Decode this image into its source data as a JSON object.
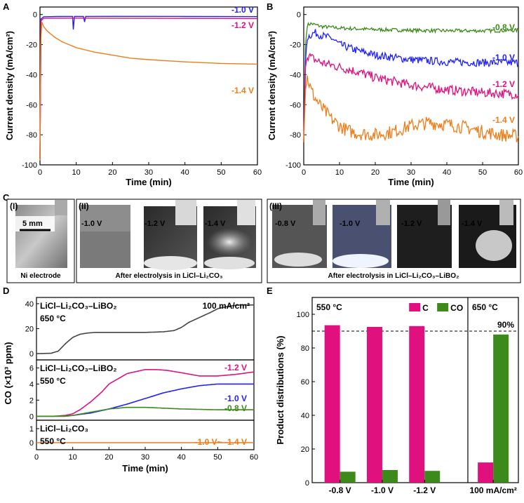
{
  "panel_labels": {
    "a": "A",
    "b": "B",
    "c": "C",
    "d": "D",
    "e": "E"
  },
  "chart_data": [
    {
      "id": "A",
      "type": "line",
      "xlabel": "Time (min)",
      "ylabel": "Current density (mA/cm²)",
      "xlim": [
        0,
        60
      ],
      "ylim": [
        -100,
        5
      ],
      "xticks": [
        0,
        10,
        20,
        30,
        40,
        50,
        60
      ],
      "yticks": [
        0,
        -20,
        -40,
        -60,
        -80,
        -100
      ],
      "series": [
        {
          "name": "-1.0 V",
          "color": "#1f1fff",
          "x": [
            0,
            0.3,
            1,
            5,
            9,
            9.2,
            9.5,
            12,
            12.3,
            12.6,
            20,
            40,
            60
          ],
          "y": [
            -96,
            -3,
            -1.5,
            -1.3,
            -1.3,
            -10,
            -1.3,
            -1.3,
            -5,
            -1.3,
            -1.2,
            -1.3,
            -1.4
          ]
        },
        {
          "name": "-1.2 V",
          "color": "#e0117f",
          "x": [
            0,
            0.3,
            1,
            10,
            30,
            50,
            60
          ],
          "y": [
            -96,
            -4,
            -2.5,
            -2.4,
            -2.5,
            -2.6,
            -2.7
          ]
        },
        {
          "name": "-1.4 V",
          "color": "#ee7d1a",
          "x": [
            0,
            0.2,
            0.5,
            1,
            2,
            4,
            6,
            8,
            10,
            15,
            20,
            25,
            30,
            40,
            50,
            60
          ],
          "y": [
            -97,
            -20,
            -5,
            -8,
            -11,
            -15,
            -18,
            -20,
            -22,
            -25,
            -27,
            -29,
            -30,
            -31.5,
            -32.5,
            -33
          ]
        }
      ]
    },
    {
      "id": "B",
      "type": "line",
      "xlabel": "Time (min)",
      "ylabel": "Current density (mA/cm²)",
      "xlim": [
        0,
        60
      ],
      "ylim": [
        -100,
        5
      ],
      "xticks": [
        0,
        10,
        20,
        30,
        40,
        50,
        60
      ],
      "yticks": [
        0,
        -20,
        -40,
        -60,
        -80,
        -100
      ],
      "series": [
        {
          "name": "-0.8 V",
          "color": "#3c8a1a",
          "x": [
            0,
            0.5,
            1,
            2,
            5,
            10,
            20,
            30,
            40,
            50,
            60
          ],
          "y": [
            -85,
            -20,
            -7,
            -6,
            -8,
            -9,
            -10,
            -10.5,
            -10.8,
            -10.8,
            -10.5
          ]
        },
        {
          "name": "-1.0 V",
          "color": "#1f1fff",
          "x": [
            0,
            0.5,
            1,
            3,
            5,
            8,
            10,
            15,
            20,
            30,
            40,
            50,
            60
          ],
          "y": [
            -85,
            -30,
            -15,
            -12,
            -14,
            -16,
            -20,
            -24,
            -27,
            -30,
            -31.5,
            -32,
            -32
          ]
        },
        {
          "name": "-1.2 V",
          "color": "#e0117f",
          "x": [
            0,
            0.5,
            1,
            3,
            5,
            10,
            15,
            20,
            30,
            40,
            50,
            60
          ],
          "y": [
            -85,
            -35,
            -27,
            -30,
            -32,
            -35,
            -38,
            -42,
            -47,
            -50,
            -52,
            -53
          ]
        },
        {
          "name": "-1.4 V",
          "color": "#ee7d1a",
          "x": [
            0,
            0.5,
            1,
            2,
            3,
            5,
            8,
            10,
            12,
            15,
            20,
            25,
            30,
            35,
            40,
            45,
            50,
            55,
            60
          ],
          "y": [
            -85,
            -50,
            -42,
            -50,
            -55,
            -62,
            -70,
            -74,
            -77,
            -79,
            -80,
            -78,
            -74,
            -72,
            -73,
            -75,
            -78,
            -80,
            -81
          ]
        }
      ]
    },
    {
      "id": "D",
      "type": "line",
      "xlabel": "Time (min)",
      "ylabel": "CO (×10³ ppm)",
      "xlim": [
        0,
        60
      ],
      "xticks": [
        0,
        10,
        20,
        30,
        40,
        50,
        60
      ],
      "subplots": [
        {
          "label1": "LiCl–Li₂CO₃–LiBO₂",
          "label2": "650 °C",
          "annotation": "100 mA/cm²",
          "ylim": [
            -5,
            45
          ],
          "yticks": [
            0,
            20,
            40
          ],
          "series": [
            {
              "name": "100 mA/cm²",
              "color": "#444444",
              "x": [
                0,
                4,
                6,
                8,
                10,
                12,
                14,
                16,
                20,
                25,
                30,
                35,
                38,
                40,
                42,
                45,
                48,
                50,
                53,
                56,
                60
              ],
              "y": [
                0,
                0.3,
                2,
                8,
                13,
                15.5,
                16.5,
                17,
                17,
                17,
                17,
                17.5,
                18.5,
                21,
                25,
                29,
                33,
                36,
                38,
                39,
                39
              ]
            }
          ]
        },
        {
          "label1": "LiCl–Li₂CO₃–LiBO₂",
          "label2": "550 °C",
          "ylim": [
            -0.5,
            7
          ],
          "yticks": [
            0,
            2,
            4,
            6
          ],
          "series": [
            {
              "name": "-1.2 V",
              "color": "#e0117f",
              "x": [
                0,
                5,
                8,
                10,
                12,
                15,
                18,
                20,
                25,
                30,
                33,
                36,
                40,
                45,
                50,
                55,
                60
              ],
              "y": [
                0,
                0,
                0.1,
                0.3,
                0.8,
                1.8,
                3,
                4,
                5.3,
                5.8,
                5.8,
                5.7,
                5.4,
                5,
                5,
                5.2,
                5.5
              ]
            },
            {
              "name": "-1.0 V",
              "color": "#1f1fff",
              "x": [
                0,
                8,
                10,
                15,
                20,
                25,
                30,
                35,
                40,
                45,
                50,
                55,
                60
              ],
              "y": [
                0,
                0,
                0.1,
                0.4,
                0.9,
                1.5,
                2.2,
                2.9,
                3.4,
                3.8,
                4,
                4,
                4
              ]
            },
            {
              "name": "-0.8 V",
              "color": "#3c8a1a",
              "x": [
                0,
                8,
                10,
                15,
                20,
                25,
                30,
                35,
                40,
                50,
                60
              ],
              "y": [
                0,
                0,
                0.1,
                0.5,
                0.9,
                1.1,
                1.1,
                1,
                0.9,
                0.8,
                0.8
              ]
            }
          ]
        },
        {
          "label1": "LiCl–Li₂CO₃",
          "label2": "550 °C",
          "ylim": [
            -0.5,
            1.6
          ],
          "yticks": [
            0,
            1
          ],
          "series": [
            {
              "name": "-1.0 V~ -1.4 V",
              "color": "#ee7d1a",
              "x": [
                0,
                60
              ],
              "y": [
                0,
                0
              ]
            }
          ]
        }
      ]
    },
    {
      "id": "E",
      "type": "bar",
      "ylabel": "Product distributions (%)",
      "ylim": [
        0,
        110
      ],
      "yticks": [
        0,
        20,
        40,
        60,
        80,
        100
      ],
      "categories": [
        "-0.8 V",
        "-1.0 V",
        "-1.2 V",
        "100 mA/cm²"
      ],
      "series": [
        {
          "name": "C",
          "color": "#e0117f",
          "values": [
            93.5,
            92.5,
            93,
            12
          ]
        },
        {
          "name": "CO",
          "color": "#3c8a1a",
          "values": [
            6.5,
            7.5,
            7,
            88
          ]
        }
      ],
      "reference_line": 90,
      "reference_label": "90%",
      "group_labels": [
        "550 °C",
        "650 °C"
      ]
    }
  ],
  "panel_c": {
    "group1": {
      "roman": "(I)",
      "scale": "5 mm",
      "caption": "Ni electrode"
    },
    "group2": {
      "roman": "(II)",
      "voltages": [
        "-1.0 V",
        "-1.2 V",
        "-1.4 V"
      ],
      "caption": "After electrolysis in LiCl–Li₂CO₃"
    },
    "group3": {
      "roman": "(III)",
      "voltages": [
        "-0.8 V",
        "-1.0 V",
        "-1.2 V",
        "-1.4 V"
      ],
      "caption": "After electrolysis in LiCl–Li₂CO₃–LiBO₂"
    }
  }
}
